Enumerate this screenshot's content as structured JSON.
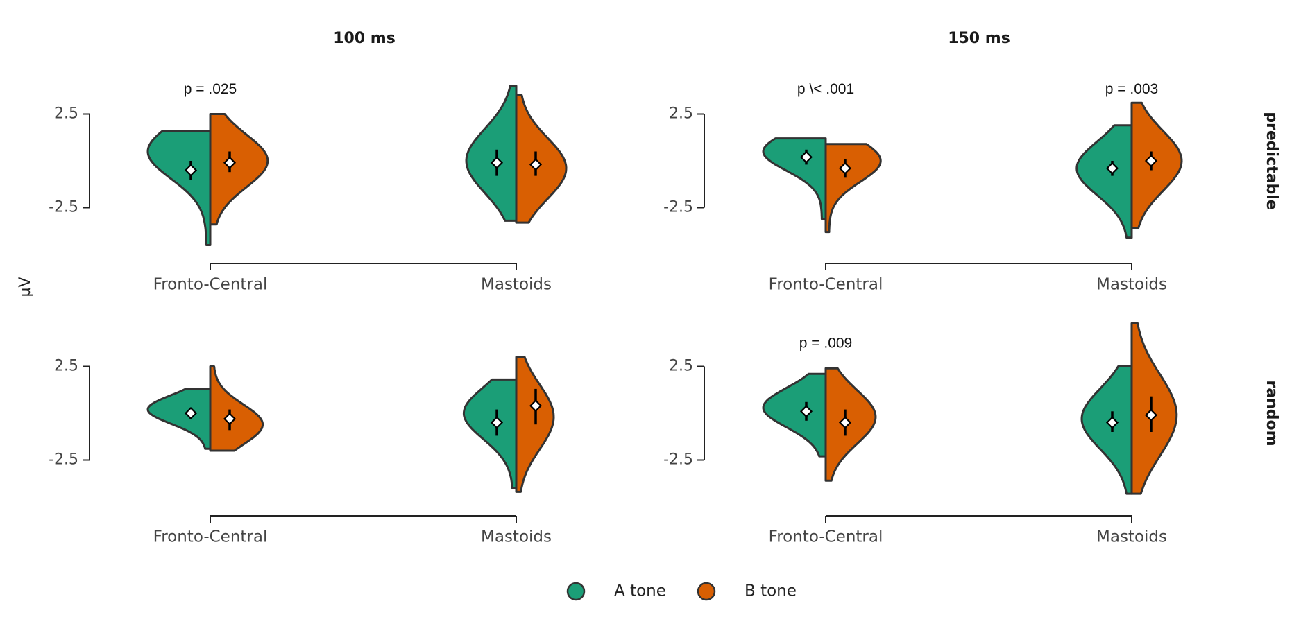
{
  "chart_data": {
    "type": "violin",
    "ylabel": "µV",
    "columns": [
      "100 ms",
      "150 ms"
    ],
    "rows": [
      "predictable",
      "random"
    ],
    "categories": [
      "Fronto-Central",
      "Mastoids"
    ],
    "yticks": [
      2.5,
      -2.5
    ],
    "ytick_labels": [
      "2.5",
      "-2.5"
    ],
    "legend": [
      {
        "name": "A tone",
        "color": "#1b9e77"
      },
      {
        "name": "B tone",
        "color": "#d95f02"
      }
    ],
    "panels": [
      {
        "row": "predictable",
        "column": "100 ms",
        "violins": [
          {
            "category": "Fronto-Central",
            "tone": "A tone",
            "ymin": -4.5,
            "ymax": 1.6,
            "peak": 0.5,
            "width": 0.25,
            "mean": -0.5,
            "ci": [
              -1.0,
              0.0
            ]
          },
          {
            "category": "Fronto-Central",
            "tone": "B tone",
            "ymin": -3.4,
            "ymax": 2.5,
            "peak": 0.0,
            "width": 0.23,
            "mean": -0.1,
            "ci": [
              -0.6,
              0.5
            ]
          },
          {
            "category": "Mastoids",
            "tone": "A tone",
            "ymin": -3.2,
            "ymax": 4.0,
            "peak": 0.0,
            "width": 0.2,
            "mean": -0.1,
            "ci": [
              -0.8,
              0.6
            ]
          },
          {
            "category": "Mastoids",
            "tone": "B tone",
            "ymin": -3.3,
            "ymax": 3.5,
            "peak": -0.4,
            "width": 0.2,
            "mean": -0.2,
            "ci": [
              -0.8,
              0.5
            ]
          }
        ],
        "annotations": [
          {
            "category": "Fronto-Central",
            "text": "p = .025",
            "y": 3.8
          }
        ]
      },
      {
        "row": "predictable",
        "column": "150 ms",
        "violins": [
          {
            "category": "Fronto-Central",
            "tone": "A tone",
            "ymin": -3.1,
            "ymax": 1.2,
            "peak": 0.5,
            "width": 0.25,
            "mean": 0.2,
            "ci": [
              -0.2,
              0.6
            ]
          },
          {
            "category": "Fronto-Central",
            "tone": "B tone",
            "ymin": -3.8,
            "ymax": 0.9,
            "peak": 0.0,
            "width": 0.22,
            "mean": -0.4,
            "ci": [
              -0.9,
              0.1
            ]
          },
          {
            "category": "Mastoids",
            "tone": "A tone",
            "ymin": -4.1,
            "ymax": 1.9,
            "peak": -0.4,
            "width": 0.22,
            "mean": -0.4,
            "ci": [
              -0.8,
              0.0
            ]
          },
          {
            "category": "Mastoids",
            "tone": "B tone",
            "ymin": -3.6,
            "ymax": 3.1,
            "peak": 0.0,
            "width": 0.2,
            "mean": 0.0,
            "ci": [
              -0.5,
              0.5
            ]
          }
        ],
        "annotations": [
          {
            "category": "Fronto-Central",
            "text": "p \\< .001",
            "y": 3.8
          },
          {
            "category": "Mastoids",
            "text": "p = .003",
            "y": 3.8
          }
        ]
      },
      {
        "row": "random",
        "column": "100 ms",
        "violins": [
          {
            "category": "Fronto-Central",
            "tone": "A tone",
            "ymin": -1.9,
            "ymax": 1.3,
            "peak": 0.2,
            "width": 0.25,
            "mean": 0.0,
            "ci": [
              -0.3,
              0.3
            ]
          },
          {
            "category": "Fronto-Central",
            "tone": "B tone",
            "ymin": -2.0,
            "ymax": 2.5,
            "peak": -0.6,
            "width": 0.21,
            "mean": -0.3,
            "ci": [
              -0.9,
              0.2
            ]
          },
          {
            "category": "Mastoids",
            "tone": "A tone",
            "ymin": -4.0,
            "ymax": 1.8,
            "peak": 0.0,
            "width": 0.21,
            "mean": -0.5,
            "ci": [
              -1.2,
              0.2
            ]
          },
          {
            "category": "Mastoids",
            "tone": "B tone",
            "ymin": -4.2,
            "ymax": 3.0,
            "peak": -0.2,
            "width": 0.15,
            "mean": 0.4,
            "ci": [
              -0.6,
              1.3
            ]
          }
        ],
        "annotations": []
      },
      {
        "row": "random",
        "column": "150 ms",
        "violins": [
          {
            "category": "Fronto-Central",
            "tone": "A tone",
            "ymin": -2.3,
            "ymax": 2.1,
            "peak": 0.3,
            "width": 0.25,
            "mean": 0.1,
            "ci": [
              -0.4,
              0.6
            ]
          },
          {
            "category": "Fronto-Central",
            "tone": "B tone",
            "ymin": -3.6,
            "ymax": 2.4,
            "peak": -0.2,
            "width": 0.2,
            "mean": -0.5,
            "ci": [
              -1.2,
              0.2
            ]
          },
          {
            "category": "Mastoids",
            "tone": "A tone",
            "ymin": -4.3,
            "ymax": 2.5,
            "peak": -0.3,
            "width": 0.2,
            "mean": -0.5,
            "ci": [
              -1.0,
              0.1
            ]
          },
          {
            "category": "Mastoids",
            "tone": "B tone",
            "ymin": -4.3,
            "ymax": 4.8,
            "peak": -0.1,
            "width": 0.18,
            "mean": -0.1,
            "ci": [
              -1.0,
              0.9
            ]
          }
        ],
        "annotations": [
          {
            "category": "Fronto-Central",
            "text": "p = .009",
            "y": 3.7
          }
        ]
      }
    ]
  }
}
